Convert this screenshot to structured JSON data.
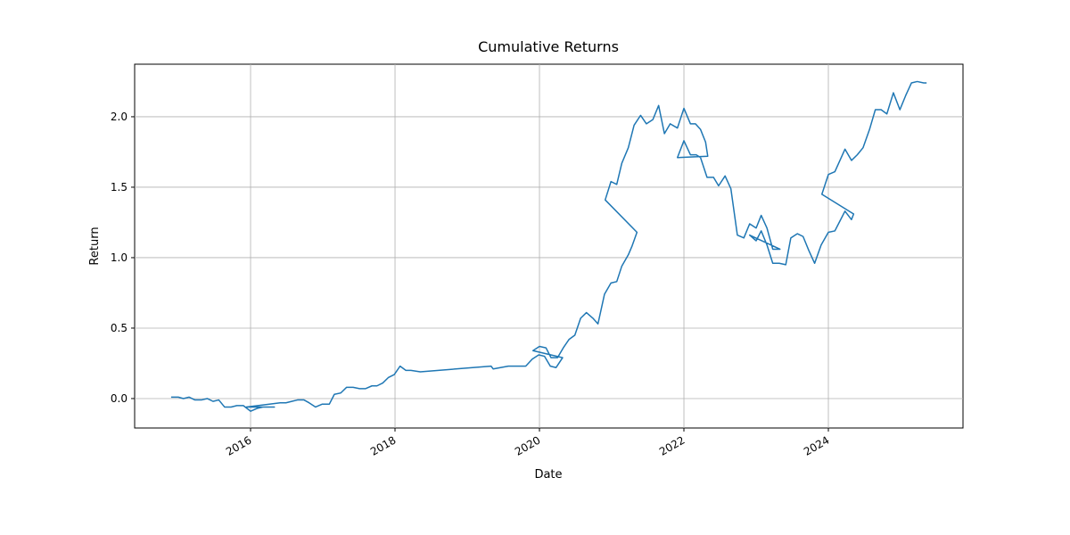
{
  "chart_data": {
    "type": "line",
    "title": "Cumulative Returns",
    "x_label": "Date",
    "y_label": "Return",
    "color": "#1f77b4",
    "grid": true,
    "xlim": [
      2014.395,
      2025.864
    ],
    "ylim": [
      -0.209,
      2.373
    ],
    "xticks": [
      2016,
      2018,
      2020,
      2022,
      2024
    ],
    "yticks": [
      {
        "value": 0,
        "label": "0.0"
      },
      {
        "value": 0.5,
        "label": "0.5"
      },
      {
        "value": 1,
        "label": "1.0"
      },
      {
        "value": 1.5,
        "label": "1.5"
      },
      {
        "value": 2,
        "label": "2.0"
      }
    ],
    "x": [
      2014.9,
      2015.0,
      2015.07,
      2015.15,
      2015.23,
      2015.32,
      2015.4,
      2015.48,
      2015.56,
      2015.64,
      2015.73,
      2015.81,
      2015.9,
      2016.0,
      2016.09,
      2016.17,
      2016.26,
      2016.33,
      2015.94,
      2016.41,
      2016.49,
      2016.57,
      2016.65,
      2016.74,
      2016.81,
      2016.9,
      2016.99,
      2017.09,
      2017.16,
      2017.25,
      2017.33,
      2017.42,
      2017.51,
      2017.59,
      2017.68,
      2017.75,
      2017.83,
      2017.91,
      2017.99,
      2018.07,
      2018.15,
      2018.22,
      2018.35,
      2019.33,
      2019.36,
      2019.46,
      2019.57,
      2019.67,
      2019.75,
      2019.81,
      2019.9,
      2019.99,
      2020.07,
      2020.15,
      2020.23,
      2020.32,
      2019.91,
      2020.0,
      2020.09,
      2020.16,
      2020.25,
      2020.33,
      2020.41,
      2020.49,
      2020.57,
      2020.65,
      2020.74,
      2020.81,
      2020.9,
      2020.99,
      2021.07,
      2021.14,
      2021.23,
      2021.28,
      2021.35,
      2020.91,
      2020.99,
      2021.07,
      2021.14,
      2021.23,
      2021.31,
      2021.4,
      2021.48,
      2021.57,
      2021.65,
      2021.73,
      2021.81,
      2021.91,
      2022.0,
      2022.09,
      2022.16,
      2022.23,
      2022.3,
      2022.33,
      2021.91,
      2022.0,
      2022.09,
      2022.17,
      2022.23,
      2022.32,
      2022.41,
      2022.48,
      2022.57,
      2022.65,
      2022.74,
      2022.83,
      2022.91,
      2023.0,
      2023.07,
      2023.15,
      2023.23,
      2023.33,
      2022.91,
      2023.0,
      2023.07,
      2023.15,
      2023.23,
      2023.32,
      2023.41,
      2023.48,
      2023.57,
      2023.65,
      2023.73,
      2023.81,
      2023.9,
      2024.0,
      2024.09,
      2024.16,
      2024.23,
      2024.32,
      2024.35,
      2023.91,
      2024.0,
      2024.09,
      2024.16,
      2024.23,
      2024.32,
      2024.4,
      2024.48,
      2024.57,
      2024.65,
      2024.73,
      2024.81,
      2024.9,
      2024.99,
      2025.07,
      2025.15,
      2025.23,
      2025.32,
      2025.36
    ],
    "values": [
      0.01,
      0.01,
      0.0,
      0.01,
      -0.01,
      -0.01,
      0.0,
      -0.02,
      -0.01,
      -0.06,
      -0.06,
      -0.05,
      -0.05,
      -0.09,
      -0.07,
      -0.06,
      -0.06,
      -0.06,
      -0.06,
      -0.03,
      -0.03,
      -0.02,
      -0.01,
      -0.01,
      -0.03,
      -0.06,
      -0.04,
      -0.04,
      0.03,
      0.04,
      0.08,
      0.08,
      0.07,
      0.07,
      0.09,
      0.09,
      0.11,
      0.15,
      0.17,
      0.23,
      0.2,
      0.2,
      0.19,
      0.23,
      0.21,
      0.22,
      0.23,
      0.23,
      0.23,
      0.23,
      0.28,
      0.31,
      0.3,
      0.23,
      0.22,
      0.29,
      0.34,
      0.37,
      0.36,
      0.29,
      0.29,
      0.36,
      0.42,
      0.45,
      0.57,
      0.61,
      0.57,
      0.53,
      0.74,
      0.82,
      0.83,
      0.94,
      1.02,
      1.08,
      1.18,
      1.41,
      1.54,
      1.52,
      1.67,
      1.78,
      1.94,
      2.01,
      1.95,
      1.98,
      2.08,
      1.88,
      1.95,
      1.92,
      2.06,
      1.95,
      1.95,
      1.91,
      1.82,
      1.72,
      1.71,
      1.83,
      1.73,
      1.73,
      1.71,
      1.57,
      1.57,
      1.51,
      1.58,
      1.49,
      1.16,
      1.14,
      1.24,
      1.21,
      1.3,
      1.21,
      1.06,
      1.06,
      1.16,
      1.12,
      1.19,
      1.09,
      0.96,
      0.96,
      0.95,
      1.14,
      1.17,
      1.15,
      1.05,
      0.96,
      1.09,
      1.18,
      1.19,
      1.26,
      1.33,
      1.27,
      1.31,
      1.45,
      1.59,
      1.61,
      1.69,
      1.77,
      1.69,
      1.73,
      1.78,
      1.91,
      2.05,
      2.05,
      2.02,
      2.17,
      2.05,
      2.15,
      2.24,
      2.25,
      2.24,
      2.24
    ]
  }
}
